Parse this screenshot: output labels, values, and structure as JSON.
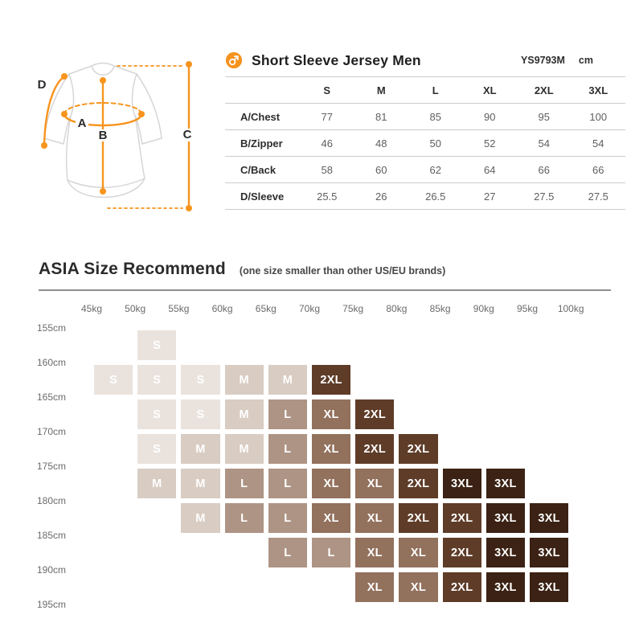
{
  "size_table": {
    "title": "Short Sleeve Jersey Men",
    "model": "YS9793M",
    "unit": "cm",
    "columns": [
      "S",
      "M",
      "L",
      "XL",
      "2XL",
      "3XL"
    ],
    "rows": [
      {
        "label": "A/Chest",
        "values": [
          "77",
          "81",
          "85",
          "90",
          "95",
          "100"
        ]
      },
      {
        "label": "B/Zipper",
        "values": [
          "46",
          "48",
          "50",
          "52",
          "54",
          "54"
        ]
      },
      {
        "label": "C/Back",
        "values": [
          "58",
          "60",
          "62",
          "64",
          "66",
          "66"
        ]
      },
      {
        "label": "D/Sleeve",
        "values": [
          "25.5",
          "26",
          "26.5",
          "27",
          "27.5",
          "27.5"
        ]
      }
    ]
  },
  "diagram": {
    "chest": "A",
    "zipper": "B",
    "back": "C",
    "sleeve": "D",
    "accent_color": "#F7941E",
    "outline_color": "#d6d6d6"
  },
  "recommend": {
    "title": "ASIA Size Recommend",
    "subtitle": "(one size smaller than other US/EU brands)",
    "weight_labels": [
      "45kg",
      "50kg",
      "55kg",
      "60kg",
      "65kg",
      "70kg",
      "75kg",
      "80kg",
      "85kg",
      "90kg",
      "95kg",
      "100kg"
    ],
    "height_labels": [
      "155cm",
      "160cm",
      "165cm",
      "170cm",
      "175cm",
      "180cm",
      "185cm",
      "190cm",
      "195cm"
    ],
    "size_colors": {
      "S": "#EAE3DD",
      "M": "#D8CCC3",
      "L": "#AE9484",
      "XL": "#92715D",
      "2XL": "#5E3C28",
      "3XL": "#3B2214"
    },
    "matrix": [
      [
        null,
        "S",
        null,
        null,
        null,
        null,
        null,
        null,
        null,
        null,
        null
      ],
      [
        "S",
        "S",
        "S",
        "M",
        "M",
        "2XL",
        null,
        null,
        null,
        null,
        null
      ],
      [
        null,
        "S",
        "S",
        "M",
        "L",
        "XL",
        "2XL",
        null,
        null,
        null,
        null
      ],
      [
        null,
        "S",
        "M",
        "M",
        "L",
        "XL",
        "2XL",
        "2XL",
        null,
        null,
        null
      ],
      [
        null,
        "M",
        "M",
        "L",
        "L",
        "XL",
        "XL",
        "2XL",
        "3XL",
        "3XL",
        null
      ],
      [
        null,
        null,
        "M",
        "L",
        "L",
        "XL",
        "XL",
        "2XL",
        "2XL",
        "3XL",
        "3XL"
      ],
      [
        null,
        null,
        null,
        null,
        "L",
        "L",
        "XL",
        "XL",
        "2XL",
        "3XL",
        "3XL"
      ],
      [
        null,
        null,
        null,
        null,
        null,
        null,
        "XL",
        "XL",
        "2XL",
        "3XL",
        "3XL"
      ]
    ]
  },
  "chart_data": [
    {
      "type": "table",
      "title": "Short Sleeve Jersey Men",
      "code": "YS9793M",
      "unit": "cm",
      "columns": [
        "S",
        "M",
        "L",
        "XL",
        "2XL",
        "3XL"
      ],
      "rows": [
        {
          "label": "A/Chest",
          "values": [
            77,
            81,
            85,
            90,
            95,
            100
          ]
        },
        {
          "label": "B/Zipper",
          "values": [
            46,
            48,
            50,
            52,
            54,
            54
          ]
        },
        {
          "label": "C/Back",
          "values": [
            58,
            60,
            62,
            64,
            66,
            66
          ]
        },
        {
          "label": "D/Sleeve",
          "values": [
            25.5,
            26,
            26.5,
            27,
            27.5,
            27.5
          ]
        }
      ]
    },
    {
      "type": "heatmap",
      "title": "ASIA Size Recommend",
      "subtitle": "(one size smaller than other US/EU brands)",
      "x_boundaries_kg": [
        45,
        50,
        55,
        60,
        65,
        70,
        75,
        80,
        85,
        90,
        95,
        100
      ],
      "y_boundaries_cm": [
        155,
        160,
        165,
        170,
        175,
        180,
        185,
        190,
        195
      ],
      "note": "each cell spans the interval between consecutive weight and height boundaries; darker color = larger size",
      "matrix_rows_height_x_cols_weight": [
        [
          null,
          "S",
          null,
          null,
          null,
          null,
          null,
          null,
          null,
          null,
          null
        ],
        [
          "S",
          "S",
          "S",
          "M",
          "M",
          "2XL",
          null,
          null,
          null,
          null,
          null
        ],
        [
          null,
          "S",
          "S",
          "M",
          "L",
          "XL",
          "2XL",
          null,
          null,
          null,
          null
        ],
        [
          null,
          "S",
          "M",
          "M",
          "L",
          "XL",
          "2XL",
          "2XL",
          null,
          null,
          null
        ],
        [
          null,
          "M",
          "M",
          "L",
          "L",
          "XL",
          "XL",
          "2XL",
          "3XL",
          "3XL",
          null
        ],
        [
          null,
          null,
          "M",
          "L",
          "L",
          "XL",
          "XL",
          "2XL",
          "2XL",
          "3XL",
          "3XL"
        ],
        [
          null,
          null,
          null,
          null,
          "L",
          "L",
          "XL",
          "XL",
          "2XL",
          "3XL",
          "3XL"
        ],
        [
          null,
          null,
          null,
          null,
          null,
          null,
          "XL",
          "XL",
          "2XL",
          "3XL",
          "3XL"
        ]
      ],
      "legend_colors": {
        "S": "#EAE3DD",
        "M": "#D8CCC3",
        "L": "#AE9484",
        "XL": "#92715D",
        "2XL": "#5E3C28",
        "3XL": "#3B2214"
      }
    }
  ]
}
